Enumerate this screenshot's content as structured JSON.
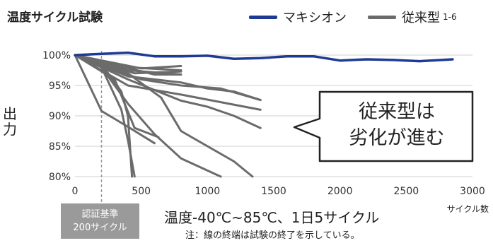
{
  "chart_data": {
    "type": "line",
    "title": "温度サイクル試験",
    "ylabel": "出力",
    "xlabel": "サイクル数",
    "xlim": [
      0,
      3000
    ],
    "ylim": [
      80,
      100
    ],
    "x_ticks": [
      "0",
      "500",
      "1000",
      "1500",
      "2000",
      "2500",
      "3000"
    ],
    "y_ticks": [
      "80%",
      "85%",
      "90%",
      "95%",
      "100%"
    ],
    "grid": true,
    "reference_line_x": 200,
    "reference_label": [
      "認証基準",
      "200サイクル"
    ],
    "condition": "温度-40℃~85℃、1日5サイクル",
    "note": "注：線の終端は試験の終了を示している。",
    "callout": [
      "従来型は",
      "劣化が進む"
    ],
    "legend": [
      {
        "name": "マキシオン",
        "color": "#1f3a93"
      },
      {
        "name": "従来型",
        "sup": "1-6",
        "color": "#6b6b6b"
      }
    ],
    "series": [
      {
        "name": "マキシオン",
        "color": "#1f3a93",
        "points": [
          [
            0,
            100
          ],
          [
            200,
            100.2
          ],
          [
            400,
            100.4
          ],
          [
            600,
            99.8
          ],
          [
            800,
            99.8
          ],
          [
            1000,
            99.9
          ],
          [
            1200,
            99.4
          ],
          [
            1400,
            99.5
          ],
          [
            1600,
            99.8
          ],
          [
            1800,
            99.8
          ],
          [
            2000,
            99.1
          ],
          [
            2200,
            99.3
          ],
          [
            2400,
            99.2
          ],
          [
            2600,
            99.0
          ],
          [
            2850,
            99.3
          ]
        ]
      },
      {
        "color": "#6b6b6b",
        "points": [
          [
            0,
            100
          ],
          [
            200,
            90.8
          ],
          [
            400,
            88.2
          ],
          [
            600,
            85.5
          ]
        ]
      },
      {
        "color": "#6b6b6b",
        "points": [
          [
            0,
            100
          ],
          [
            200,
            98
          ],
          [
            350,
            91
          ],
          [
            400,
            86
          ],
          [
            450,
            79.9
          ]
        ]
      },
      {
        "color": "#6b6b6b",
        "points": [
          [
            0,
            100
          ],
          [
            200,
            98.5
          ],
          [
            350,
            94
          ],
          [
            400,
            90
          ],
          [
            430,
            79.9
          ]
        ]
      },
      {
        "color": "#6b6b6b",
        "points": [
          [
            0,
            100
          ],
          [
            200,
            98
          ],
          [
            400,
            92
          ],
          [
            600,
            87
          ],
          [
            800,
            83
          ],
          [
            1000,
            81
          ],
          [
            1100,
            79.9
          ]
        ]
      },
      {
        "color": "#6b6b6b",
        "points": [
          [
            0,
            100
          ],
          [
            300,
            96
          ],
          [
            450,
            88
          ],
          [
            630,
            86.5
          ]
        ]
      },
      {
        "color": "#6b6b6b",
        "points": [
          [
            0,
            100
          ],
          [
            400,
            97
          ],
          [
            650,
            93
          ],
          [
            800,
            87.5
          ],
          [
            1000,
            85.0
          ],
          [
            1200,
            82.5
          ],
          [
            1340,
            79.9
          ]
        ]
      },
      {
        "color": "#6b6b6b",
        "points": [
          [
            0,
            100
          ],
          [
            400,
            96
          ],
          [
            800,
            92.5
          ],
          [
            1000,
            91.5
          ],
          [
            1200,
            90
          ],
          [
            1400,
            88
          ]
        ]
      },
      {
        "color": "#6b6b6b",
        "points": [
          [
            0,
            100
          ],
          [
            400,
            95
          ],
          [
            800,
            93.5
          ],
          [
            1400,
            91.0
          ]
        ]
      },
      {
        "color": "#6b6b6b",
        "points": [
          [
            0,
            100
          ],
          [
            400,
            96.5
          ],
          [
            800,
            95.5
          ],
          [
            1000,
            94.5
          ],
          [
            1200,
            94
          ],
          [
            1400,
            92.6
          ]
        ]
      },
      {
        "color": "#6b6b6b",
        "points": [
          [
            0,
            100
          ],
          [
            500,
            96
          ],
          [
            800,
            95
          ],
          [
            1100,
            94.5
          ],
          [
            1400,
            92.6
          ]
        ]
      },
      {
        "color": "#6b6b6b",
        "points": [
          [
            0,
            100
          ],
          [
            400,
            98
          ],
          [
            800,
            97.5
          ]
        ]
      },
      {
        "color": "#6b6b6b",
        "points": [
          [
            0,
            100
          ],
          [
            400,
            97.5
          ],
          [
            800,
            96.8
          ]
        ]
      },
      {
        "color": "#6b6b6b",
        "points": [
          [
            0,
            100
          ],
          [
            500,
            97.8
          ],
          [
            800,
            98.2
          ]
        ]
      },
      {
        "color": "#6b6b6b",
        "points": [
          [
            0,
            100
          ],
          [
            450,
            97
          ],
          [
            800,
            97.3
          ]
        ]
      },
      {
        "color": "#6b6b6b",
        "points": [
          [
            0,
            100
          ],
          [
            600,
            96.8
          ],
          [
            800,
            96.8
          ]
        ]
      }
    ]
  }
}
